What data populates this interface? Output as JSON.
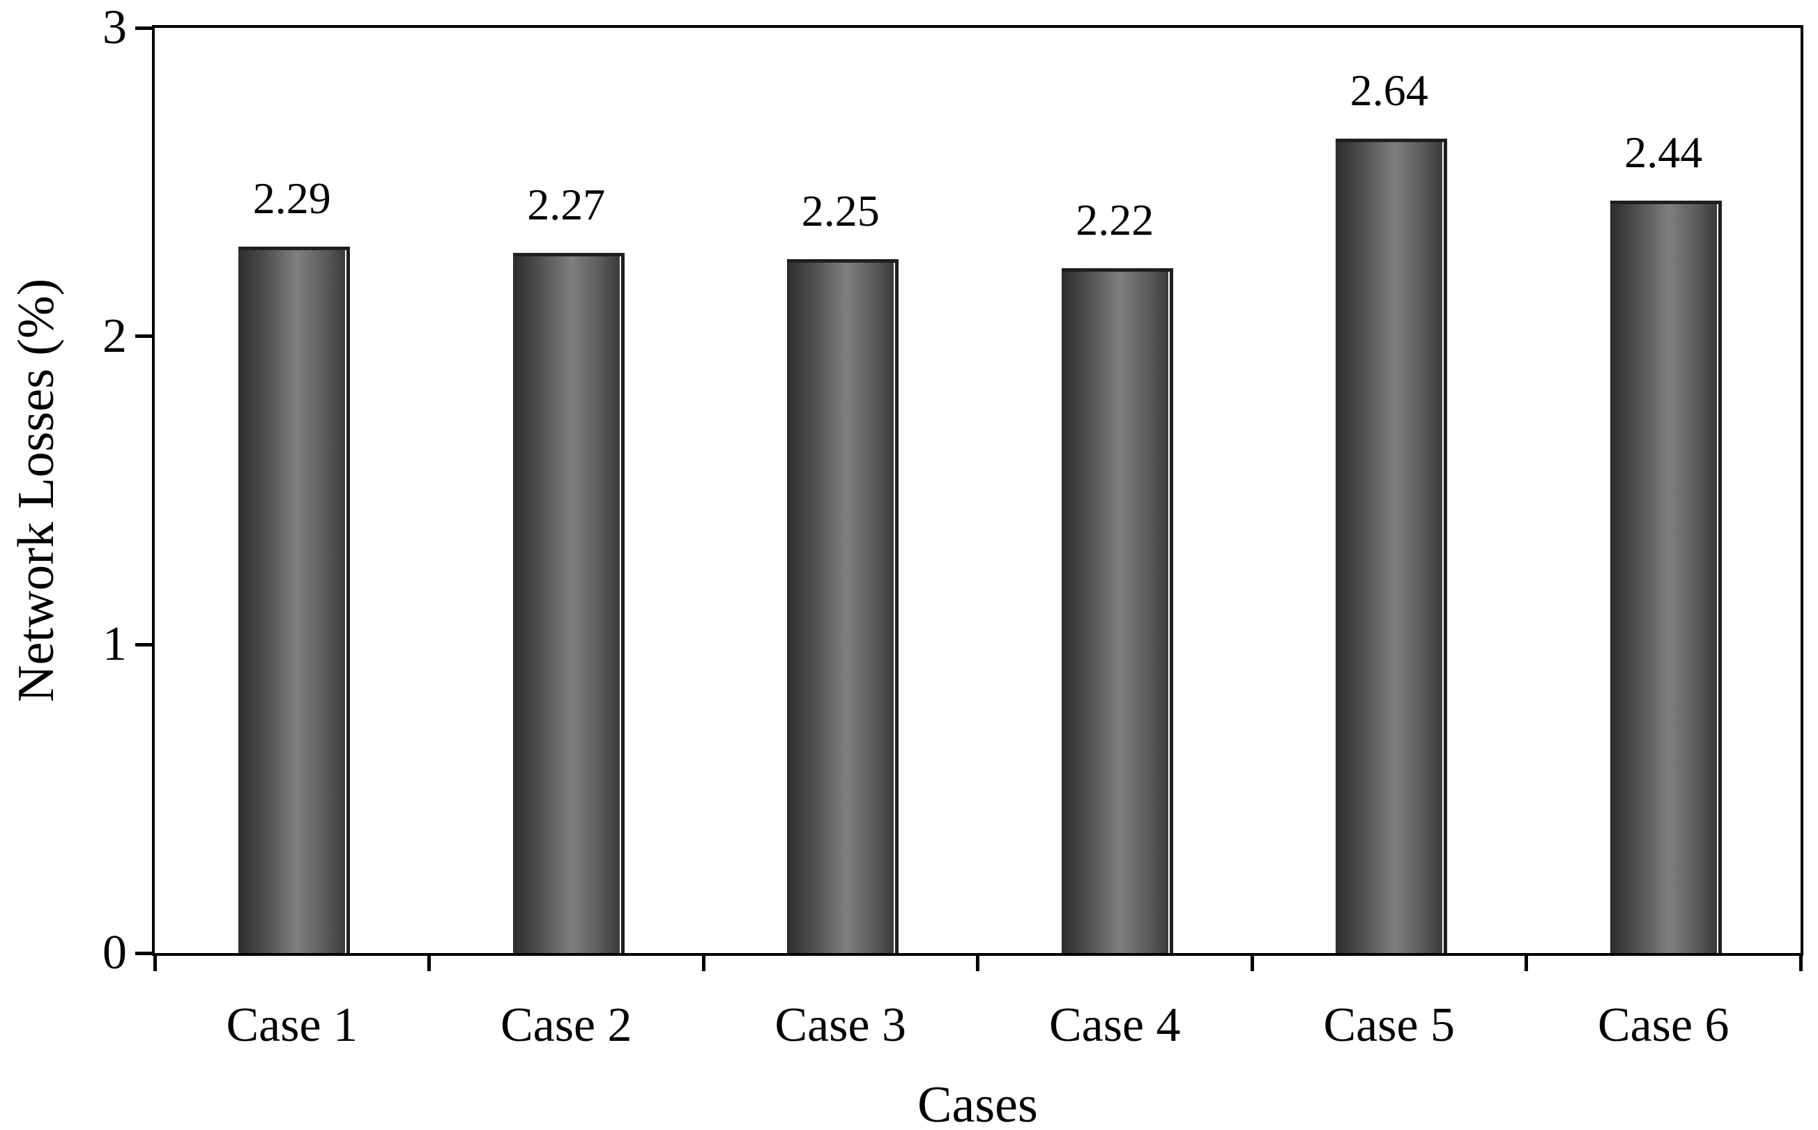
{
  "chart_data": {
    "type": "bar",
    "title": "",
    "xlabel": "Cases",
    "ylabel": "Network Losses (%)",
    "categories": [
      "Case 1",
      "Case 2",
      "Case 3",
      "Case 4",
      "Case 5",
      "Case 6"
    ],
    "values": [
      2.29,
      2.27,
      2.25,
      2.22,
      2.64,
      2.44
    ],
    "data_labels": [
      "2.29",
      "2.27",
      "2.25",
      "2.22",
      "2.64",
      "2.44"
    ],
    "ylim": [
      0,
      3
    ],
    "yticks": [
      0,
      1,
      2,
      3
    ],
    "grid": false,
    "legend_position": "none",
    "bar_style": {
      "fill_edge_left": "#2d2d2d",
      "fill_center": "#7f7f7f",
      "fill_edge_right": "#3a3a3a",
      "border": "#1f1f1f",
      "background": "#ffffff",
      "axis_color": "#000000"
    }
  }
}
